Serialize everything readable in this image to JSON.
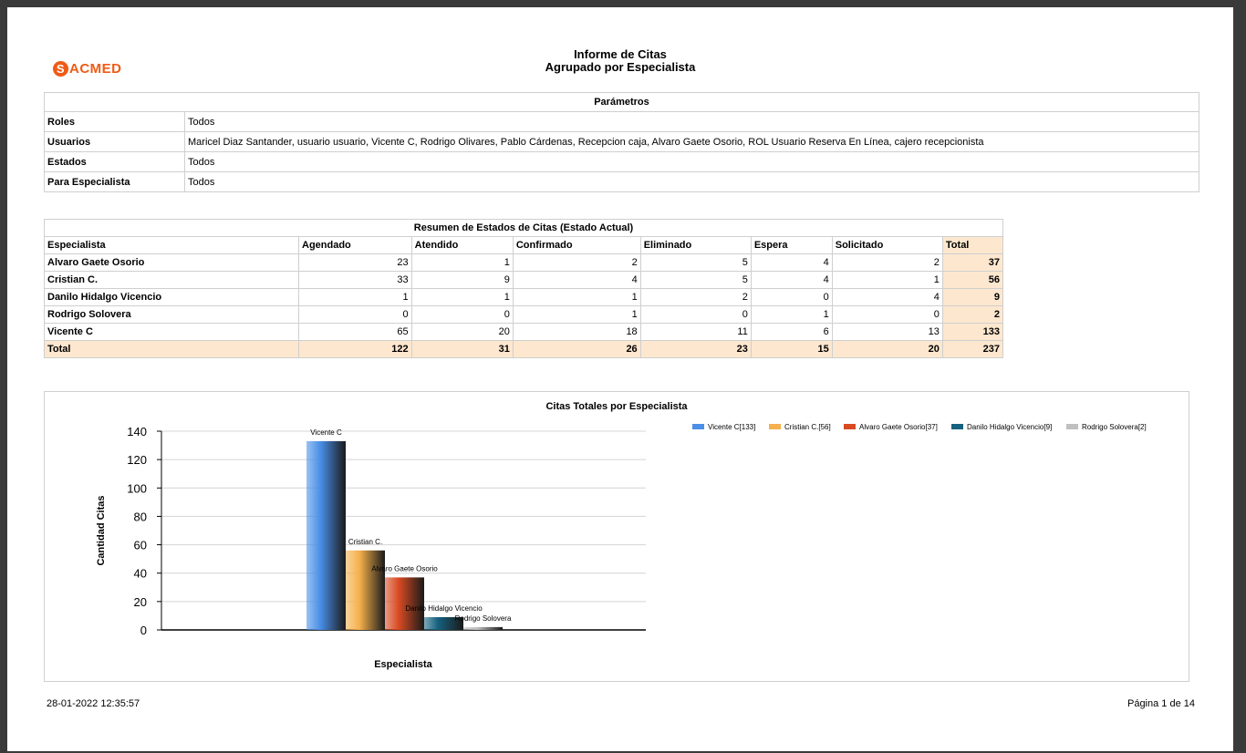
{
  "report": {
    "logo_initial": "S",
    "logo_text": "ACMED",
    "title": "Informe de Citas",
    "subtitle": "Agrupado por Especialista"
  },
  "params": {
    "header": "Parámetros",
    "rows": [
      {
        "key": "Roles",
        "value": "Todos"
      },
      {
        "key": "Usuarios",
        "value": "Maricel Diaz Santander, usuario usuario, Vicente  C, Rodrigo Olivares, Pablo Cárdenas, Recepcion caja, Alvaro Gaete Osorio, ROL Usuario Reserva En Línea, cajero recepcionista"
      },
      {
        "key": "Estados",
        "value": "Todos"
      },
      {
        "key": "Para Especialista",
        "value": "Todos"
      }
    ]
  },
  "summary": {
    "header": "Resumen de Estados de Citas (Estado Actual)",
    "columns": [
      "Especialista",
      "Agendado",
      "Atendido",
      "Confirmado",
      "Eliminado",
      "Espera",
      "Solicitado",
      "Total"
    ],
    "rows": [
      {
        "name": "Alvaro Gaete Osorio",
        "values": [
          "23",
          "1",
          "2",
          "5",
          "4",
          "2"
        ],
        "total": "37"
      },
      {
        "name": "Cristian C.",
        "values": [
          "33",
          "9",
          "4",
          "5",
          "4",
          "1"
        ],
        "total": "56"
      },
      {
        "name": "Danilo Hidalgo Vicencio",
        "values": [
          "1",
          "1",
          "1",
          "2",
          "0",
          "4"
        ],
        "total": "9"
      },
      {
        "name": "Rodrigo Solovera",
        "values": [
          "0",
          "0",
          "1",
          "0",
          "1",
          "0"
        ],
        "total": "2"
      },
      {
        "name": "Vicente C",
        "values": [
          "65",
          "20",
          "18",
          "11",
          "6",
          "13"
        ],
        "total": "133"
      }
    ],
    "total_row": {
      "name": "Total",
      "values": [
        "122",
        "31",
        "26",
        "23",
        "15",
        "20"
      ],
      "total": "237"
    }
  },
  "chart_data": {
    "type": "bar",
    "title": "Citas Totales por Especialista",
    "xlabel": "Especialista",
    "ylabel": "Cantidad Citas",
    "ylim": [
      0,
      140
    ],
    "yticks": [
      0,
      20,
      40,
      60,
      80,
      100,
      120,
      140
    ],
    "grid": true,
    "legend_position": "top-right",
    "categories": [
      "Vicente C",
      "Cristian C.",
      "Alvaro Gaete Osorio",
      "Danilo Hidalgo Vicencio",
      "Rodrigo Solovera"
    ],
    "values": [
      133,
      56,
      37,
      9,
      2
    ],
    "legend": [
      "Vicente C[133]",
      "Cristian C.[56]",
      "Alvaro Gaete Osorio[37]",
      "Danilo Hidalgo Vicencio[9]",
      "Rodrigo Solovera[2]"
    ],
    "colors": [
      "#4a8fe8",
      "#f6b04c",
      "#d84a22",
      "#16617f",
      "#c0c0c0"
    ]
  },
  "footer": {
    "date": "28-01-2022 12:35:57",
    "page": "Página 1 de 14"
  }
}
